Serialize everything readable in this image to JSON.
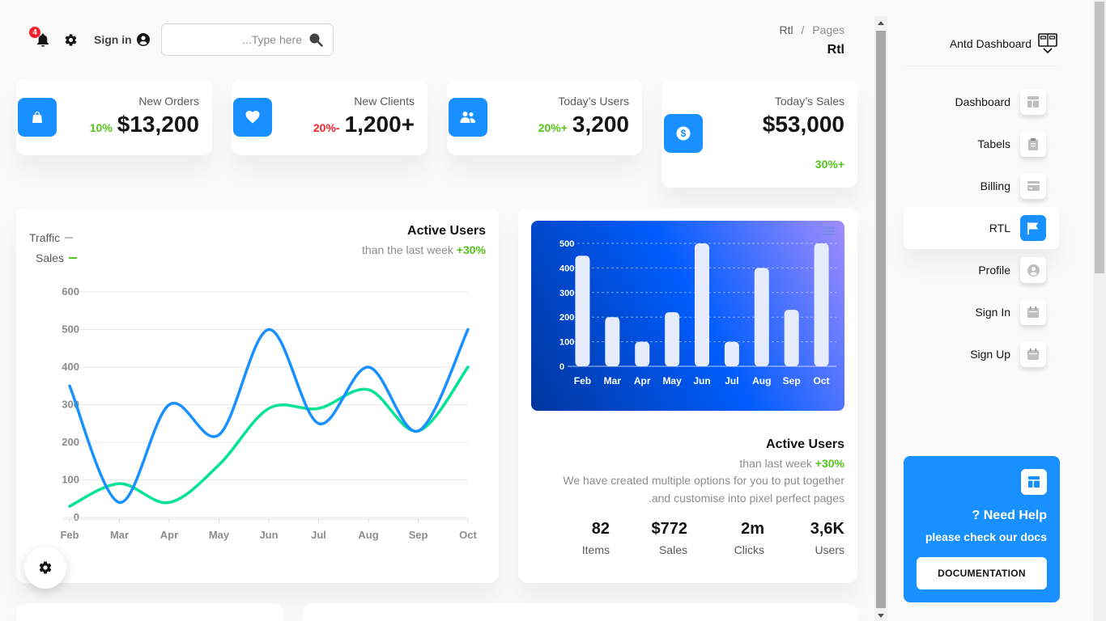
{
  "header": {
    "notification_count": "4",
    "sign_in_label": "Sign in",
    "search_placeholder": "...Type here",
    "breadcrumb_root": "Rtl",
    "breadcrumb_sep": "/",
    "breadcrumb_current": "Pages",
    "page_title": "Rtl"
  },
  "stats": [
    {
      "title": "New Orders",
      "value": "$13,200",
      "change": "10%",
      "trend": "up",
      "icon": "shopping-bag-icon"
    },
    {
      "title": "New Clients",
      "value": "1,200+",
      "change": "20%-",
      "trend": "down",
      "icon": "heart-icon"
    },
    {
      "title": "Today’s Users",
      "value": "3,200",
      "change": "20%+",
      "trend": "up",
      "icon": "users-icon"
    },
    {
      "title": "Today’s Sales",
      "value": "$53,000",
      "change": "30%+",
      "trend": "up",
      "icon": "dollar-icon"
    }
  ],
  "line_card": {
    "title": "Active Users",
    "subtitle_prefix": "than the last week",
    "subtitle_change": "+30%"
  },
  "bar_card": {
    "title": "Active Users",
    "subtitle_prefix": "than last week",
    "subtitle_change": "+30%",
    "description_line1": "We have created multiple options for you to put together",
    "description_line2": ".and customise into pixel perfect pages",
    "metrics": [
      {
        "value": "82",
        "label": "Items"
      },
      {
        "value": "$772",
        "label": "Sales"
      },
      {
        "value": "2m",
        "label": "Clicks"
      },
      {
        "value": "3,6K",
        "label": "Users"
      }
    ]
  },
  "sidebar": {
    "brand": "Antd Dashboard",
    "items": [
      {
        "label": "Dashboard",
        "icon": "dashboard-icon",
        "active": false
      },
      {
        "label": "Tabels",
        "icon": "clipboard-icon",
        "active": false
      },
      {
        "label": "Billing",
        "icon": "credit-card-icon",
        "active": false
      },
      {
        "label": "RTL",
        "icon": "flag-icon",
        "active": true
      },
      {
        "label": "Profile",
        "icon": "user-icon",
        "active": false
      },
      {
        "label": "Sign In",
        "icon": "calendar-icon",
        "active": false
      },
      {
        "label": "Sign Up",
        "icon": "calendar-icon",
        "active": false
      }
    ],
    "help_title": "? Need Help",
    "help_subtitle": "please check our docs",
    "help_button": "DOCUMENTATION"
  },
  "colors": {
    "primary": "#1890ff",
    "traffic": "#1890ff",
    "sales": "#00e396",
    "positive": "#52c41a",
    "negative": "#f5222d"
  },
  "chart_data": [
    {
      "type": "line",
      "categories": [
        "Feb",
        "Mar",
        "Apr",
        "May",
        "Jun",
        "Jul",
        "Aug",
        "Sep",
        "Oct"
      ],
      "series": [
        {
          "name": "Traffic",
          "values": [
            350,
            40,
            300,
            220,
            500,
            250,
            400,
            230,
            500
          ]
        },
        {
          "name": "Sales",
          "values": [
            30,
            90,
            40,
            140,
            290,
            290,
            340,
            230,
            400
          ]
        }
      ],
      "ylim": [
        0,
        600
      ],
      "yticks": [
        0,
        100,
        200,
        300,
        400,
        500,
        600
      ],
      "legend": "top-left",
      "grid": true
    },
    {
      "type": "bar",
      "categories": [
        "Feb",
        "Mar",
        "Apr",
        "May",
        "Jun",
        "Jul",
        "Aug",
        "Sep",
        "Oct"
      ],
      "values": [
        450,
        200,
        100,
        220,
        500,
        100,
        400,
        230,
        500
      ],
      "ylim": [
        0,
        500
      ],
      "yticks": [
        0,
        100,
        200,
        300,
        400,
        500
      ],
      "grid": true
    }
  ]
}
